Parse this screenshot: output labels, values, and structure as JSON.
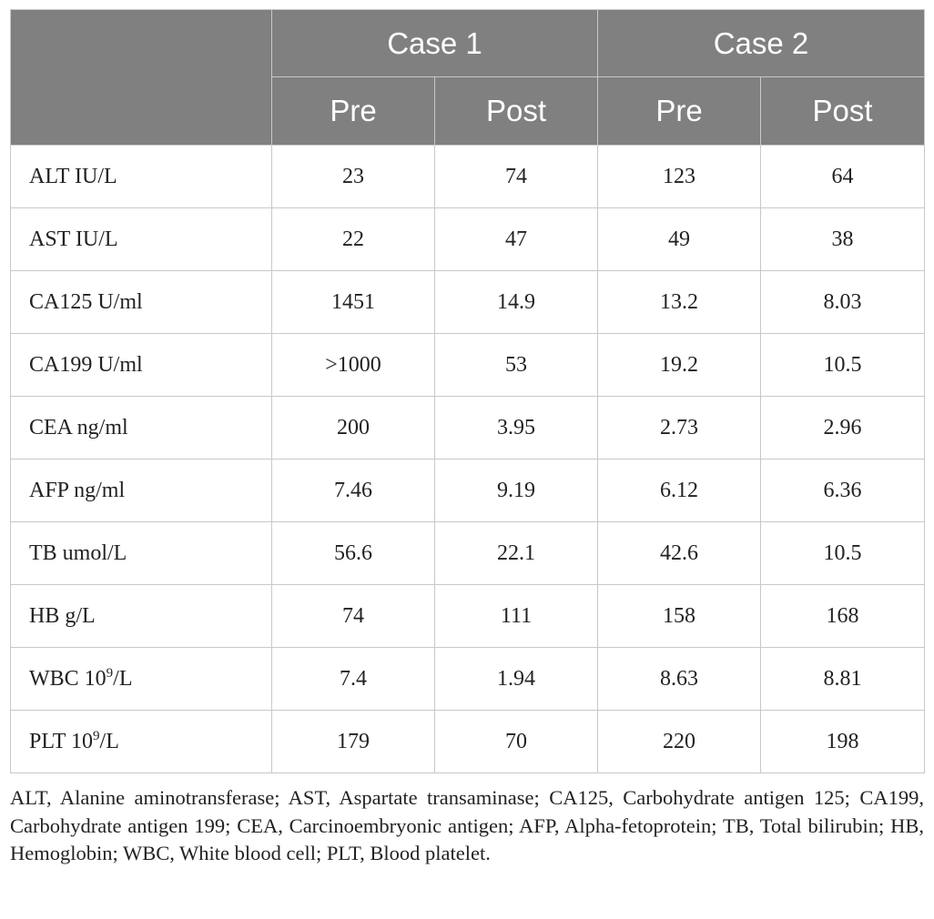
{
  "table": {
    "group_headers": [
      "Case 1",
      "Case 2"
    ],
    "sub_headers": [
      "Pre",
      "Post",
      "Pre",
      "Post"
    ],
    "rows": [
      {
        "label": "ALT IU/L",
        "label_main": "",
        "label_sup": "",
        "label_tail": "",
        "values": [
          "23",
          "74",
          "123",
          "64"
        ]
      },
      {
        "label": "AST IU/L",
        "label_main": "",
        "label_sup": "",
        "label_tail": "",
        "values": [
          "22",
          "47",
          "49",
          "38"
        ]
      },
      {
        "label": "CA125 U/ml",
        "label_main": "",
        "label_sup": "",
        "label_tail": "",
        "values": [
          "1451",
          "14.9",
          "13.2",
          "8.03"
        ]
      },
      {
        "label": "CA199 U/ml",
        "label_main": "",
        "label_sup": "",
        "label_tail": "",
        "values": [
          ">1000",
          "53",
          "19.2",
          "10.5"
        ]
      },
      {
        "label": "CEA ng/ml",
        "label_main": "",
        "label_sup": "",
        "label_tail": "",
        "values": [
          "200",
          "3.95",
          "2.73",
          "2.96"
        ]
      },
      {
        "label": "AFP ng/ml",
        "label_main": "",
        "label_sup": "",
        "label_tail": "",
        "values": [
          "7.46",
          "9.19",
          "6.12",
          "6.36"
        ]
      },
      {
        "label": "TB umol/L",
        "label_main": "",
        "label_sup": "",
        "label_tail": "",
        "values": [
          "56.6",
          "22.1",
          "42.6",
          "10.5"
        ]
      },
      {
        "label": "HB g/L",
        "label_main": "",
        "label_sup": "",
        "label_tail": "",
        "values": [
          "74",
          "111",
          "158",
          "168"
        ]
      },
      {
        "label": "",
        "label_main": "WBC 10",
        "label_sup": "9",
        "label_tail": "/L",
        "values": [
          "7.4",
          "1.94",
          "8.63",
          "8.81"
        ]
      },
      {
        "label": "",
        "label_main": "PLT 10",
        "label_sup": "9",
        "label_tail": "/L",
        "values": [
          "179",
          "70",
          "220",
          "198"
        ]
      }
    ]
  },
  "footnote": "ALT, Alanine aminotransferase; AST, Aspartate transaminase; CA125, Carbohydrate antigen 125; CA199, Carbohydrate antigen 199; CEA, Carcinoembryonic antigen; AFP, Alpha-fetoprotein; TB, Total bilirubin; HB, Hemoglobin; WBC, White blood cell; PLT, Blood platelet.",
  "colors": {
    "header_bg": "#808080",
    "header_text": "#ffffff",
    "grid_line": "#c8c8c8",
    "body_text": "#222222"
  }
}
